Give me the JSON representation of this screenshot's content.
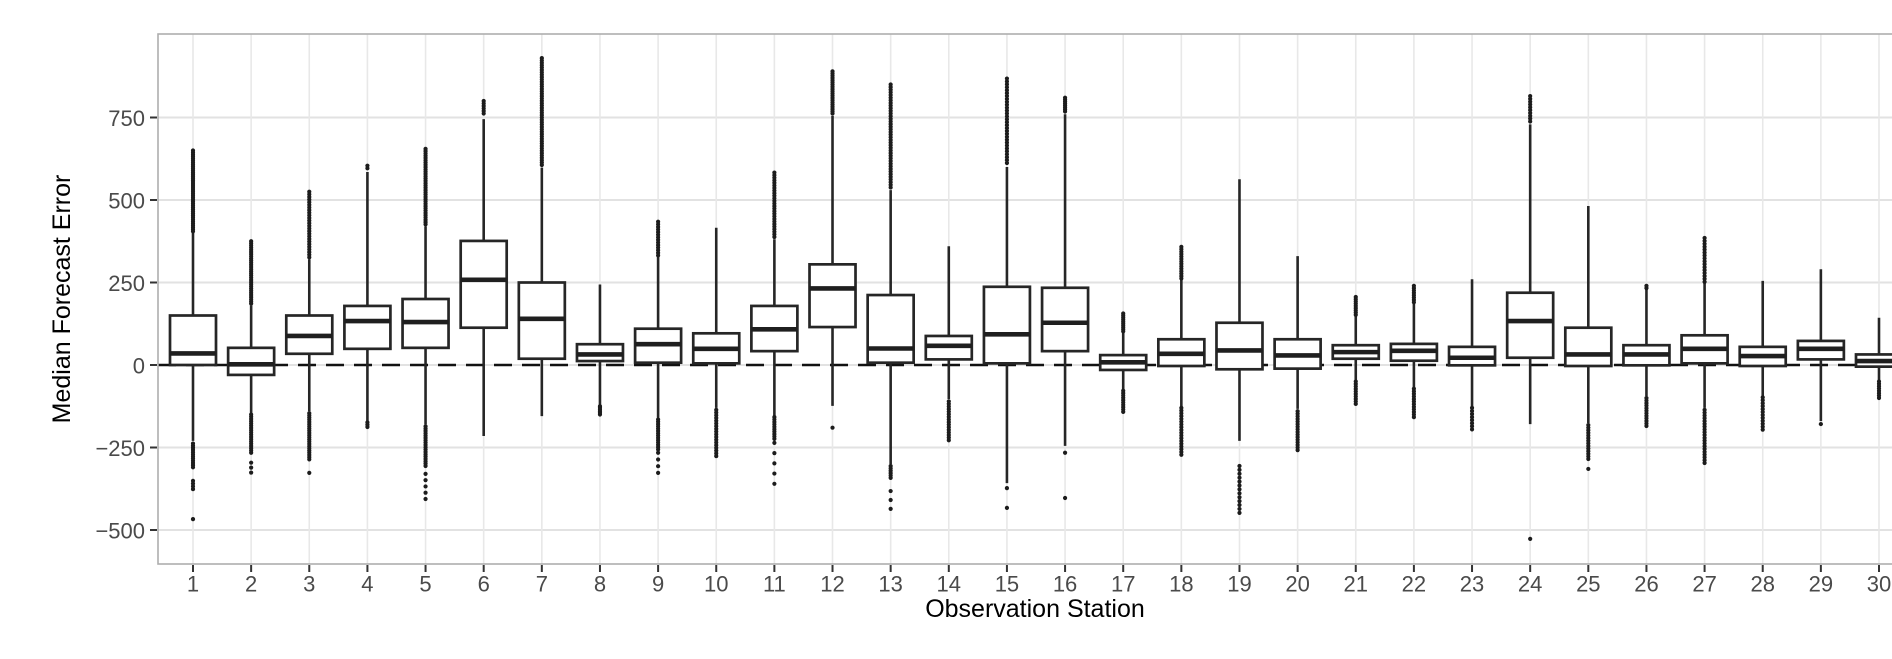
{
  "chart_data": {
    "type": "boxplot",
    "title": "",
    "xlabel": "Observation Station",
    "ylabel": "Median Forecast Error",
    "x_ticks": [
      "1",
      "2",
      "3",
      "4",
      "5",
      "6",
      "7",
      "8",
      "9",
      "10",
      "11",
      "12",
      "13",
      "14",
      "15",
      "16",
      "17",
      "18",
      "19",
      "20",
      "21",
      "22",
      "23",
      "24",
      "25",
      "26",
      "27",
      "28",
      "29",
      "30"
    ],
    "y_ticks": [
      750,
      500,
      250,
      0,
      -250,
      -500
    ],
    "ylim": [
      -600,
      1000
    ],
    "grid": "major",
    "legend": "none",
    "zero_line": {
      "value": 0,
      "style": "dashed",
      "color": "#111111"
    },
    "colors": {
      "box_stroke": "#262626",
      "box_fill": "#ffffff",
      "median": "#1f1f1f",
      "whisker": "#262626",
      "outlier": "#1c1c1c",
      "grid_h": "#e2e2e2",
      "grid_v": "#e8e8e8",
      "panel_border": "#aeaeae",
      "tick_mark": "#333333",
      "tick_label": "#4a4a4a",
      "axis_title": "#000000",
      "background": "#ffffff"
    },
    "stations": [
      {
        "station": "1",
        "whisker_low": -230,
        "q1": 0,
        "median": 35,
        "q3": 150,
        "whisker_high": 400,
        "outliers_high": [
          [
            405,
            650,
            42
          ]
        ],
        "outliers_low": [
          [
            -310,
            -238,
            12
          ],
          [
            -376,
            -351,
            4
          ],
          [
            -467,
            -467,
            1
          ]
        ]
      },
      {
        "station": "2",
        "whisker_low": -145,
        "q1": -30,
        "median": 2,
        "q3": 52,
        "whisker_high": 180,
        "outliers_high": [
          [
            186,
            375,
            30
          ]
        ],
        "outliers_low": [
          [
            -266,
            -150,
            18
          ],
          [
            -326,
            -296,
            3
          ]
        ]
      },
      {
        "station": "3",
        "whisker_low": -140,
        "q1": 34,
        "median": 88,
        "q3": 150,
        "whisker_high": 320,
        "outliers_high": [
          [
            326,
            525,
            26
          ]
        ],
        "outliers_low": [
          [
            -286,
            -146,
            22
          ],
          [
            -327,
            -327,
            1
          ]
        ]
      },
      {
        "station": "4",
        "whisker_low": -170,
        "q1": 49,
        "median": 133,
        "q3": 179,
        "whisker_high": 585,
        "outliers_high": [
          [
            596,
            604,
            2
          ]
        ],
        "outliers_low": [
          [
            -188,
            -174,
            3
          ]
        ]
      },
      {
        "station": "5",
        "whisker_low": -180,
        "q1": 52,
        "median": 130,
        "q3": 200,
        "whisker_high": 420,
        "outliers_high": [
          [
            426,
            655,
            34
          ]
        ],
        "outliers_low": [
          [
            -306,
            -186,
            18
          ],
          [
            -406,
            -330,
            5
          ]
        ]
      },
      {
        "station": "6",
        "whisker_low": -215,
        "q1": 113,
        "median": 258,
        "q3": 376,
        "whisker_high": 745,
        "outliers_high": [
          [
            762,
            800,
            6
          ]
        ],
        "outliers_low": []
      },
      {
        "station": "7",
        "whisker_low": -155,
        "q1": 19,
        "median": 140,
        "q3": 250,
        "whisker_high": 598,
        "outliers_high": [
          [
            606,
            930,
            46
          ]
        ],
        "outliers_low": []
      },
      {
        "station": "8",
        "whisker_low": -120,
        "q1": 12,
        "median": 32,
        "q3": 63,
        "whisker_high": 244,
        "outliers_high": [],
        "outliers_low": [
          [
            -150,
            -125,
            6
          ]
        ]
      },
      {
        "station": "9",
        "whisker_low": -160,
        "q1": 7,
        "median": 63,
        "q3": 110,
        "whisker_high": 435,
        "outliers_high": [
          [
            332,
            434,
            14
          ]
        ],
        "outliers_low": [
          [
            -256,
            -165,
            14
          ],
          [
            -327,
            -266,
            4
          ]
        ]
      },
      {
        "station": "10",
        "whisker_low": -130,
        "q1": 5,
        "median": 49,
        "q3": 96,
        "whisker_high": 416,
        "outliers_high": [],
        "outliers_low": [
          [
            -276,
            -136,
            18
          ]
        ]
      },
      {
        "station": "11",
        "whisker_low": -155,
        "q1": 42,
        "median": 108,
        "q3": 179,
        "whisker_high": 381,
        "outliers_high": [
          [
            388,
            583,
            26
          ]
        ],
        "outliers_low": [
          [
            -224,
            -158,
            10
          ],
          [
            -360,
            -236,
            5
          ]
        ]
      },
      {
        "station": "12",
        "whisker_low": -124,
        "q1": 115,
        "median": 232,
        "q3": 305,
        "whisker_high": 755,
        "outliers_high": [
          [
            762,
            890,
            20
          ]
        ],
        "outliers_low": [
          [
            -190,
            -190,
            1
          ]
        ]
      },
      {
        "station": "13",
        "whisker_low": -300,
        "q1": 7,
        "median": 50,
        "q3": 212,
        "whisker_high": 530,
        "outliers_high": [
          [
            538,
            850,
            40
          ]
        ],
        "outliers_low": [
          [
            -342,
            -306,
            6
          ],
          [
            -436,
            -382,
            3
          ]
        ]
      },
      {
        "station": "14",
        "whisker_low": -103,
        "q1": 17,
        "median": 58,
        "q3": 88,
        "whisker_high": 360,
        "outliers_high": [],
        "outliers_low": [
          [
            -228,
            -110,
            16
          ]
        ]
      },
      {
        "station": "15",
        "whisker_low": -358,
        "q1": 5,
        "median": 93,
        "q3": 237,
        "whisker_high": 600,
        "outliers_high": [
          [
            612,
            868,
            30
          ]
        ],
        "outliers_low": [
          [
            -433,
            -373,
            2
          ]
        ]
      },
      {
        "station": "16",
        "whisker_low": -245,
        "q1": 42,
        "median": 128,
        "q3": 234,
        "whisker_high": 760,
        "outliers_high": [
          [
            768,
            810,
            8
          ]
        ],
        "outliers_low": [
          [
            -266,
            -266,
            1
          ],
          [
            -403,
            -403,
            1
          ]
        ]
      },
      {
        "station": "17",
        "whisker_low": -145,
        "q1": -15,
        "median": 8,
        "q3": 30,
        "whisker_high": 158,
        "outliers_high": [
          [
            102,
            156,
            10
          ]
        ],
        "outliers_low": [
          [
            -142,
            -78,
            10
          ]
        ]
      },
      {
        "station": "18",
        "whisker_low": -276,
        "q1": -3,
        "median": 34,
        "q3": 78,
        "whisker_high": 361,
        "outliers_high": [
          [
            262,
            358,
            14
          ]
        ],
        "outliers_low": [
          [
            -272,
            -130,
            18
          ]
        ]
      },
      {
        "station": "19",
        "whisker_low": -230,
        "q1": -13,
        "median": 44,
        "q3": 128,
        "whisker_high": 563,
        "outliers_high": [],
        "outliers_low": [
          [
            -448,
            -306,
            13
          ]
        ]
      },
      {
        "station": "20",
        "whisker_low": -133,
        "q1": -11,
        "median": 29,
        "q3": 78,
        "whisker_high": 330,
        "outliers_high": [],
        "outliers_low": [
          [
            -258,
            -140,
            16
          ]
        ]
      },
      {
        "station": "21",
        "whisker_low": -120,
        "q1": 19,
        "median": 39,
        "q3": 60,
        "whisker_high": 209,
        "outliers_high": [
          [
            152,
            206,
            9
          ]
        ],
        "outliers_low": [
          [
            -118,
            -50,
            10
          ]
        ]
      },
      {
        "station": "22",
        "whisker_low": -155,
        "q1": 13,
        "median": 43,
        "q3": 64,
        "whisker_high": 244,
        "outliers_high": [
          [
            190,
            240,
            8
          ]
        ],
        "outliers_low": [
          [
            -158,
            -72,
            12
          ]
        ]
      },
      {
        "station": "23",
        "whisker_low": -200,
        "q1": -1,
        "median": 22,
        "q3": 55,
        "whisker_high": 260,
        "outliers_high": [],
        "outliers_low": [
          [
            -195,
            -130,
            8
          ]
        ]
      },
      {
        "station": "24",
        "whisker_low": -179,
        "q1": 22,
        "median": 133,
        "q3": 219,
        "whisker_high": 729,
        "outliers_high": [
          [
            738,
            815,
            10
          ]
        ],
        "outliers_low": [
          [
            -527,
            -527,
            1
          ]
        ]
      },
      {
        "station": "25",
        "whisker_low": -176,
        "q1": -3,
        "median": 32,
        "q3": 113,
        "whisker_high": 482,
        "outliers_high": [],
        "outliers_low": [
          [
            -285,
            -182,
            14
          ],
          [
            -315,
            -315,
            1
          ]
        ]
      },
      {
        "station": "26",
        "whisker_low": -94,
        "q1": -1,
        "median": 32,
        "q3": 60,
        "whisker_high": 229,
        "outliers_high": [
          [
            233,
            240,
            2
          ]
        ],
        "outliers_low": [
          [
            -185,
            -100,
            12
          ]
        ]
      },
      {
        "station": "27",
        "whisker_low": -130,
        "q1": 5,
        "median": 49,
        "q3": 90,
        "whisker_high": 389,
        "outliers_high": [
          [
            252,
            385,
            16
          ]
        ],
        "outliers_low": [
          [
            -297,
            -136,
            20
          ]
        ]
      },
      {
        "station": "28",
        "whisker_low": -200,
        "q1": -3,
        "median": 27,
        "q3": 55,
        "whisker_high": 255,
        "outliers_high": [],
        "outliers_low": [
          [
            -196,
            -98,
            12
          ]
        ]
      },
      {
        "station": "29",
        "whisker_low": -170,
        "q1": 17,
        "median": 49,
        "q3": 73,
        "whisker_high": 290,
        "outliers_high": [],
        "outliers_low": [
          [
            -179,
            -179,
            1
          ]
        ]
      },
      {
        "station": "30",
        "whisker_low": -103,
        "q1": -5,
        "median": 12,
        "q3": 32,
        "whisker_high": 143,
        "outliers_high": [],
        "outliers_low": [
          [
            -100,
            -50,
            8
          ]
        ]
      }
    ]
  }
}
